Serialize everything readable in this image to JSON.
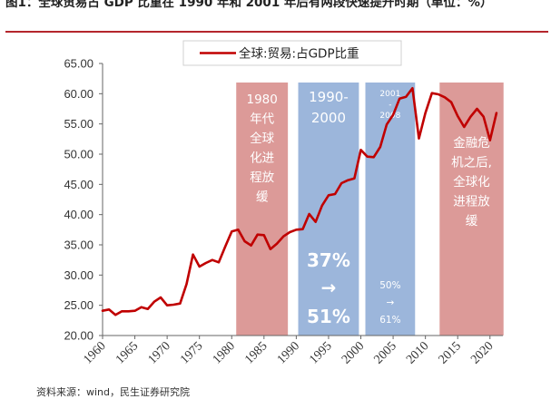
{
  "header": {
    "title": "图1：全球贸易占 GDP 比重在 1990 年和 2001 年后有两段快速提升时期（单位：%）"
  },
  "footer": {
    "source": "资料来源：wind，民生证券研究院"
  },
  "chart_data": {
    "type": "line",
    "title": "",
    "xlabel": "",
    "ylabel": "",
    "xlim": [
      1960,
      2022
    ],
    "ylim": [
      20,
      65
    ],
    "yticks": [
      "20.00",
      "25.00",
      "30.00",
      "35.00",
      "40.00",
      "45.00",
      "50.00",
      "55.00",
      "60.00",
      "65.00"
    ],
    "xticks": [
      "1960",
      "1965",
      "1970",
      "1975",
      "1980",
      "1985",
      "1990",
      "1995",
      "2000",
      "2005",
      "2010",
      "2015",
      "2020"
    ],
    "legend": {
      "position": "top",
      "label": "全球:贸易:占GDP比重"
    },
    "series": [
      {
        "name": "全球:贸易:占GDP比重",
        "color": "#c00000",
        "x": [
          1960,
          1961,
          1962,
          1963,
          1964,
          1965,
          1966,
          1967,
          1968,
          1969,
          1970,
          1971,
          1972,
          1973,
          1974,
          1975,
          1976,
          1977,
          1978,
          1979,
          1980,
          1981,
          1982,
          1983,
          1984,
          1985,
          1986,
          1987,
          1988,
          1989,
          1990,
          1991,
          1992,
          1993,
          1994,
          1995,
          1996,
          1997,
          1998,
          1999,
          2000,
          2001,
          2002,
          2003,
          2004,
          2005,
          2006,
          2007,
          2008,
          2009,
          2010,
          2011,
          2012,
          2013,
          2014,
          2015,
          2016,
          2017,
          2018,
          2019,
          2020,
          2021
        ],
        "y": [
          24.1,
          24.3,
          23.4,
          24.0,
          24.0,
          24.1,
          24.7,
          24.4,
          25.6,
          26.3,
          25.0,
          25.1,
          25.3,
          28.5,
          33.4,
          31.4,
          32.0,
          32.5,
          32.1,
          34.7,
          37.2,
          37.5,
          35.6,
          34.9,
          36.7,
          36.6,
          34.3,
          35.2,
          36.4,
          37.1,
          37.5,
          37.6,
          40.1,
          38.8,
          41.5,
          43.2,
          43.4,
          45.2,
          45.7,
          46.0,
          50.7,
          49.6,
          49.5,
          51.2,
          54.9,
          56.5,
          59.2,
          59.5,
          60.9,
          52.6,
          56.8,
          60.1,
          59.9,
          59.4,
          58.6,
          56.3,
          54.5,
          56.2,
          57.5,
          56.2,
          52.3,
          56.8
        ]
      }
    ],
    "bands": [
      {
        "id": "band1",
        "x_start": 1980.7,
        "x_end": 1988.7,
        "color": "#dc9a98",
        "text": [
          "1980",
          "年代",
          "全球",
          "化进",
          "程放",
          "缓"
        ]
      },
      {
        "id": "band2",
        "x_start": 1990.3,
        "x_end": 1999.7,
        "color": "#9cb6db",
        "text": [
          "1990-",
          "2000"
        ],
        "stat": [
          "37%",
          "→",
          "51%"
        ]
      },
      {
        "id": "band3",
        "x_start": 2000.7,
        "x_end": 2008.4,
        "color": "#9cb6db",
        "text": [
          "2001",
          "-",
          "2008"
        ],
        "stat": [
          "50%",
          "→",
          "61%"
        ]
      },
      {
        "id": "band4",
        "x_start": 2012.2,
        "x_end": 2022.1,
        "color": "#dc9a98",
        "text": [
          "金融危",
          "机之后,",
          "全球化",
          "进程放",
          "缓"
        ]
      }
    ]
  }
}
